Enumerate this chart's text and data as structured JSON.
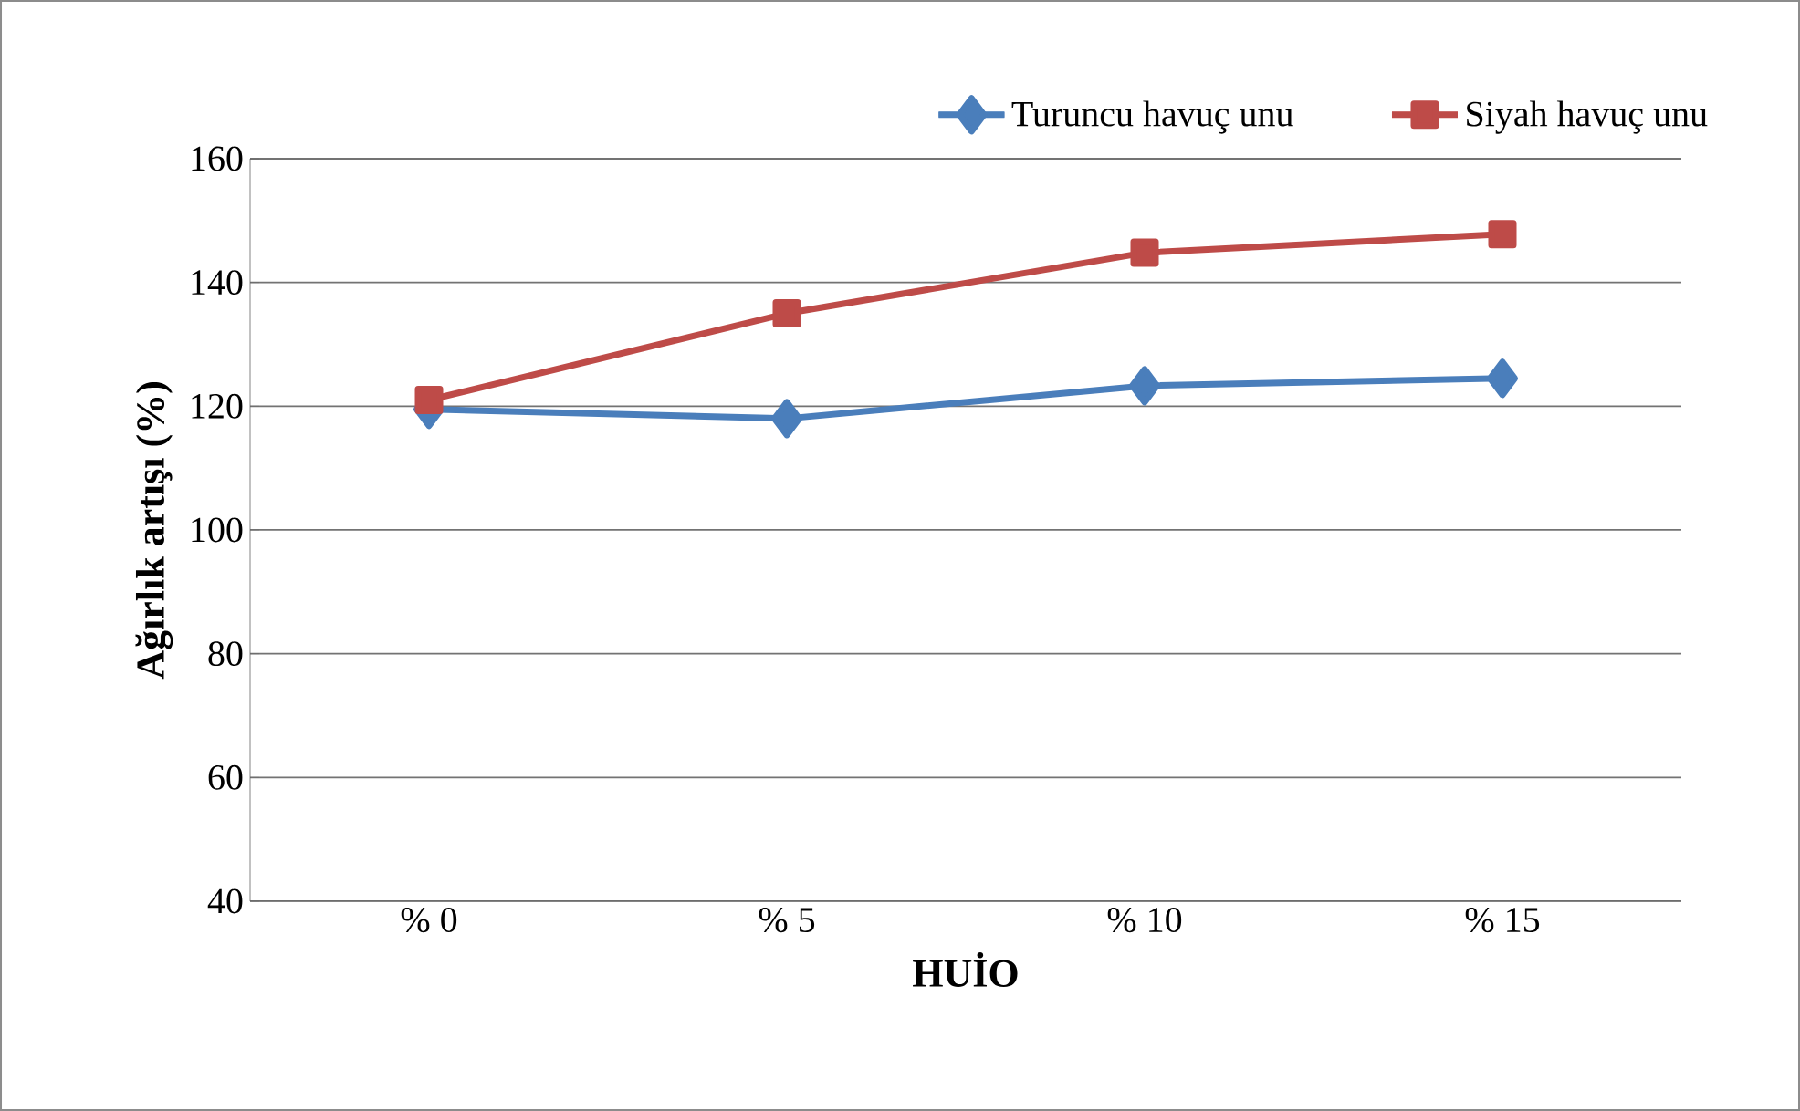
{
  "chart_data": {
    "type": "line",
    "xlabel": "HUİO",
    "ylabel": "Ağırlık artışı (%)",
    "categories": [
      "% 0",
      "% 5",
      "% 10",
      "% 15"
    ],
    "series": [
      {
        "name": "Turuncu havuç unu",
        "color": "#4a7ebb",
        "marker": "diamond",
        "values": [
          119.5,
          118,
          123.3,
          124.5
        ]
      },
      {
        "name": "Siyah havuç unu",
        "color": "#be4b48",
        "marker": "square",
        "values": [
          121,
          135,
          144.8,
          147.8
        ]
      }
    ],
    "ylim": [
      40,
      160
    ],
    "yticks": [
      40,
      60,
      80,
      100,
      120,
      140,
      160
    ],
    "grid": "y",
    "legend": "top",
    "line_style": "solid"
  }
}
